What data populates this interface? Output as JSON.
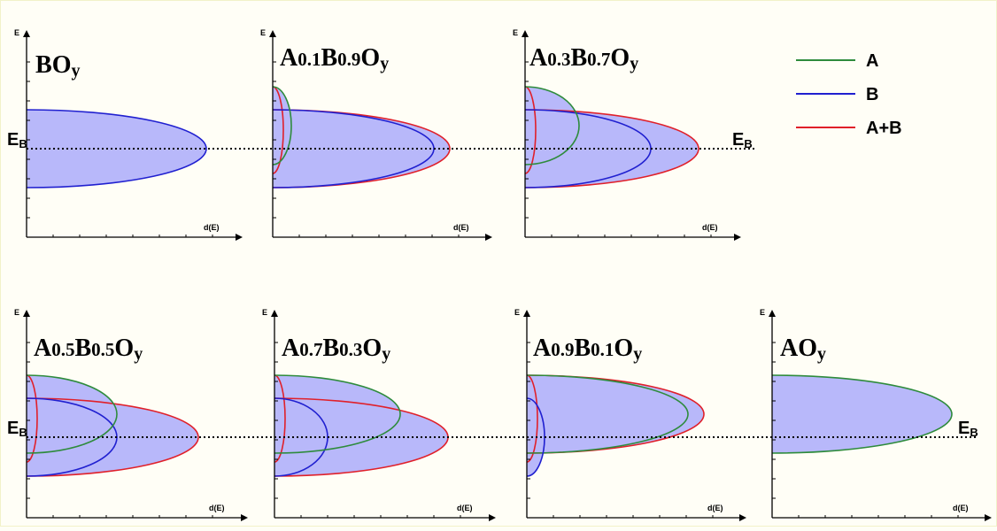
{
  "colors": {
    "A": "#2e8b3c",
    "B": "#2020d0",
    "AB": "#e0202a",
    "fill": "#b8b8fa",
    "background": "#fffef6",
    "border": "#f2f2c8"
  },
  "axis_labels": {
    "x": "d(E)",
    "y": "E"
  },
  "reference_level": {
    "label_main": "E",
    "label_sub": "B"
  },
  "legend": [
    {
      "key": "A",
      "label": "A"
    },
    {
      "key": "B",
      "label": "B"
    },
    {
      "key": "AB",
      "label": "A+B"
    }
  ],
  "panels": [
    {
      "title": [
        [
          "B",
          ""
        ],
        [
          "O",
          ""
        ],
        [
          "y",
          "sub"
        ]
      ]
    },
    {
      "title": [
        [
          "A",
          ""
        ],
        [
          "0.1",
          "small"
        ],
        [
          "B",
          ""
        ],
        [
          "0.9",
          "small"
        ],
        [
          "O",
          ""
        ],
        [
          "y",
          "sub"
        ]
      ]
    },
    {
      "title": [
        [
          "A",
          ""
        ],
        [
          "0.3",
          "small"
        ],
        [
          "B",
          ""
        ],
        [
          "0.7",
          "small"
        ],
        [
          "O",
          ""
        ],
        [
          "y",
          "sub"
        ]
      ]
    },
    {
      "title": [
        [
          "A",
          ""
        ],
        [
          "0.5",
          "small"
        ],
        [
          "B",
          ""
        ],
        [
          "0.5",
          "small"
        ],
        [
          "O",
          ""
        ],
        [
          "y",
          "sub"
        ]
      ]
    },
    {
      "title": [
        [
          "A",
          ""
        ],
        [
          "0.7",
          "small"
        ],
        [
          "B",
          ""
        ],
        [
          "0.3",
          "small"
        ],
        [
          "O",
          ""
        ],
        [
          "y",
          "sub"
        ]
      ]
    },
    {
      "title": [
        [
          "A",
          ""
        ],
        [
          "0.9",
          "small"
        ],
        [
          "B",
          ""
        ],
        [
          "0.1",
          "small"
        ],
        [
          "O",
          ""
        ],
        [
          "y",
          "sub"
        ]
      ]
    },
    {
      "title": [
        [
          "A",
          ""
        ],
        [
          "O",
          ""
        ],
        [
          "y",
          "sub"
        ]
      ]
    }
  ]
}
